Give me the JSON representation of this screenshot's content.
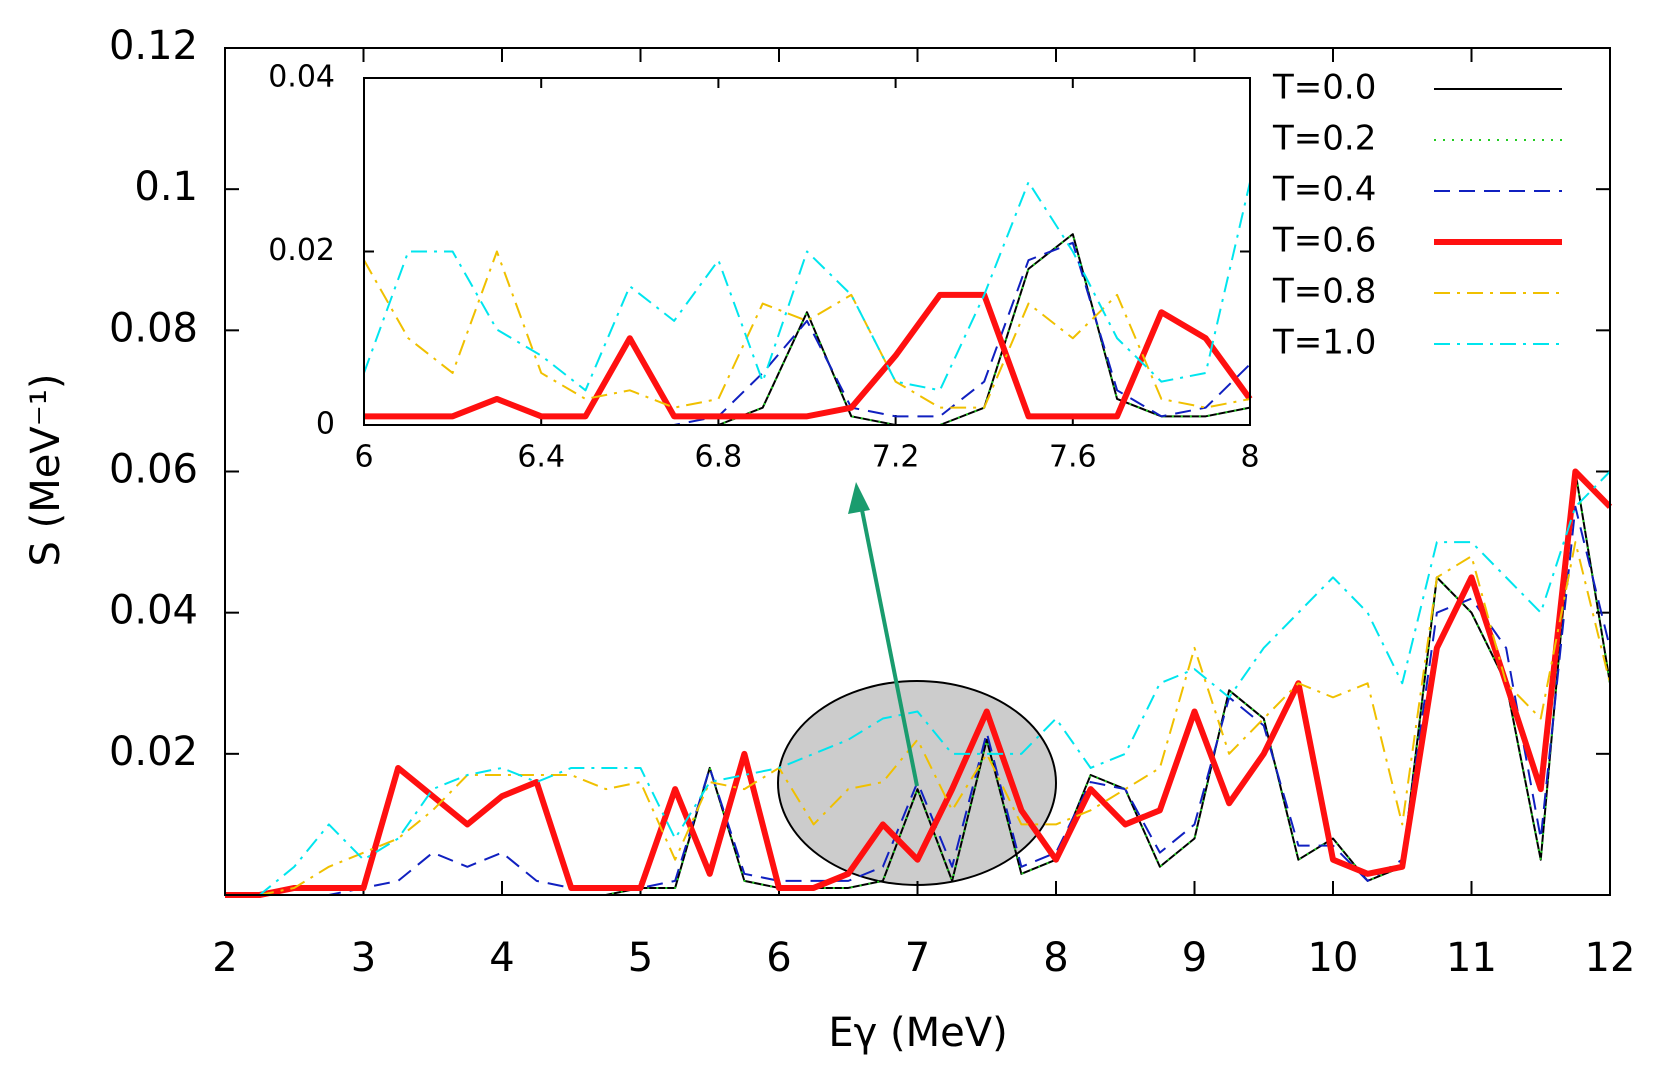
{
  "chart_data": [
    {
      "type": "line",
      "xlabel": "Eγ (MeV)",
      "ylabel": "S (MeV⁻¹)",
      "xlim": [
        2,
        12
      ],
      "ylim": [
        0,
        0.12
      ],
      "xticks": [
        2,
        3,
        4,
        5,
        6,
        7,
        8,
        9,
        10,
        11,
        12
      ],
      "yticks": [
        0.02,
        0.04,
        0.06,
        0.08,
        0.1,
        0.12
      ],
      "legend": "upper right",
      "x": [
        2,
        2.25,
        2.5,
        2.75,
        3,
        3.25,
        3.5,
        3.75,
        4,
        4.25,
        4.5,
        4.75,
        5,
        5.25,
        5.5,
        5.75,
        6,
        6.25,
        6.5,
        6.75,
        7,
        7.25,
        7.5,
        7.75,
        8,
        8.25,
        8.5,
        8.75,
        9,
        9.25,
        9.5,
        9.75,
        10,
        10.25,
        10.5,
        10.75,
        11,
        11.25,
        11.5,
        11.75,
        12
      ],
      "series": [
        {
          "name": "T=0.0",
          "color": "#000000",
          "linestyle": "solid",
          "linewidth": 2,
          "values": [
            0,
            0,
            0,
            0,
            0,
            0,
            0,
            0,
            0,
            0,
            0,
            0,
            0.001,
            0.001,
            0.018,
            0.002,
            0.001,
            0.001,
            0.001,
            0.002,
            0.015,
            0.002,
            0.022,
            0.003,
            0.005,
            0.017,
            0.015,
            0.004,
            0.008,
            0.029,
            0.025,
            0.005,
            0.008,
            0.002,
            0.004,
            0.045,
            0.04,
            0.03,
            0.005,
            0.06,
            0.03
          ]
        },
        {
          "name": "T=0.2",
          "color": "#22cc22",
          "linestyle": "dotted",
          "linewidth": 2,
          "values": [
            0,
            0,
            0,
            0,
            0,
            0,
            0,
            0,
            0,
            0,
            0,
            0,
            0.001,
            0.001,
            0.018,
            0.002,
            0.001,
            0.001,
            0.001,
            0.002,
            0.015,
            0.002,
            0.022,
            0.003,
            0.005,
            0.017,
            0.015,
            0.004,
            0.008,
            0.029,
            0.025,
            0.005,
            0.008,
            0.002,
            0.004,
            0.045,
            0.04,
            0.03,
            0.005,
            0.06,
            0.03
          ]
        },
        {
          "name": "T=0.4",
          "color": "#1020c0",
          "linestyle": "dashed",
          "linewidth": 2,
          "values": [
            0,
            0,
            0,
            0,
            0.001,
            0.002,
            0.006,
            0.004,
            0.006,
            0.002,
            0.001,
            0.001,
            0.001,
            0.002,
            0.018,
            0.003,
            0.002,
            0.002,
            0.002,
            0.004,
            0.016,
            0.004,
            0.023,
            0.004,
            0.006,
            0.016,
            0.015,
            0.006,
            0.01,
            0.028,
            0.024,
            0.007,
            0.007,
            0.002,
            0.005,
            0.04,
            0.042,
            0.035,
            0.008,
            0.055,
            0.035
          ]
        },
        {
          "name": "T=0.6",
          "color": "#ff1010",
          "linestyle": "solid",
          "linewidth": 6,
          "values": [
            0,
            0,
            0.001,
            0.001,
            0.001,
            0.018,
            0.014,
            0.01,
            0.014,
            0.016,
            0.001,
            0.001,
            0.001,
            0.015,
            0.003,
            0.02,
            0.001,
            0.001,
            0.003,
            0.01,
            0.005,
            0.015,
            0.026,
            0.012,
            0.005,
            0.015,
            0.01,
            0.012,
            0.026,
            0.013,
            0.02,
            0.03,
            0.005,
            0.003,
            0.004,
            0.035,
            0.045,
            0.03,
            0.015,
            0.06,
            0.055
          ]
        },
        {
          "name": "T=0.8",
          "color": "#f0c000",
          "linestyle": "dashdot",
          "linewidth": 2,
          "values": [
            0,
            0,
            0.001,
            0.004,
            0.006,
            0.008,
            0.012,
            0.017,
            0.017,
            0.017,
            0.017,
            0.015,
            0.016,
            0.005,
            0.016,
            0.015,
            0.018,
            0.01,
            0.015,
            0.016,
            0.022,
            0.012,
            0.02,
            0.01,
            0.01,
            0.012,
            0.015,
            0.018,
            0.035,
            0.02,
            0.025,
            0.03,
            0.028,
            0.03,
            0.01,
            0.045,
            0.048,
            0.03,
            0.025,
            0.05,
            0.03
          ]
        },
        {
          "name": "T=1.0",
          "color": "#00e5ee",
          "linestyle": "dashdot",
          "linewidth": 2,
          "values": [
            0,
            0,
            0.004,
            0.01,
            0.005,
            0.008,
            0.015,
            0.017,
            0.018,
            0.016,
            0.018,
            0.018,
            0.018,
            0.008,
            0.016,
            0.017,
            0.018,
            0.02,
            0.022,
            0.025,
            0.026,
            0.02,
            0.02,
            0.02,
            0.025,
            0.018,
            0.02,
            0.03,
            0.032,
            0.028,
            0.035,
            0.04,
            0.045,
            0.04,
            0.03,
            0.05,
            0.05,
            0.045,
            0.04,
            0.055,
            0.06
          ]
        }
      ]
    },
    {
      "type": "line",
      "xlim": [
        6,
        8
      ],
      "ylim": [
        0,
        0.04
      ],
      "xticks": [
        6,
        6.4,
        6.8,
        7.2,
        7.6,
        8
      ],
      "yticks": [
        0,
        0.02,
        0.04
      ],
      "x": [
        6,
        6.1,
        6.2,
        6.3,
        6.4,
        6.5,
        6.6,
        6.7,
        6.8,
        6.9,
        7,
        7.1,
        7.2,
        7.3,
        7.4,
        7.5,
        7.6,
        7.7,
        7.8,
        7.9,
        8
      ],
      "series": [
        {
          "color": "#000000",
          "linestyle": "solid",
          "linewidth": 2,
          "values": [
            0,
            0,
            0,
            0,
            0,
            0,
            0,
            0,
            0,
            0.002,
            0.013,
            0.001,
            0,
            0,
            0.002,
            0.018,
            0.022,
            0.003,
            0.001,
            0.001,
            0.002
          ]
        },
        {
          "color": "#22cc22",
          "linestyle": "dotted",
          "linewidth": 2,
          "values": [
            0,
            0,
            0,
            0,
            0,
            0,
            0,
            0,
            0,
            0.002,
            0.013,
            0.001,
            0,
            0,
            0.002,
            0.018,
            0.022,
            0.003,
            0.001,
            0.001,
            0.002
          ]
        },
        {
          "color": "#1020c0",
          "linestyle": "dashed",
          "linewidth": 2,
          "values": [
            0,
            0,
            0,
            0,
            0,
            0,
            0,
            0,
            0.001,
            0.006,
            0.012,
            0.002,
            0.001,
            0.001,
            0.005,
            0.019,
            0.021,
            0.004,
            0.001,
            0.002,
            0.007
          ]
        },
        {
          "color": "#ff1010",
          "linestyle": "solid",
          "linewidth": 6,
          "values": [
            0.001,
            0.001,
            0.001,
            0.003,
            0.001,
            0.001,
            0.01,
            0.001,
            0.001,
            0.001,
            0.001,
            0.002,
            0.008,
            0.015,
            0.015,
            0.001,
            0.001,
            0.001,
            0.013,
            0.01,
            0.003
          ]
        },
        {
          "color": "#f0c000",
          "linestyle": "dashdot",
          "linewidth": 2,
          "values": [
            0.019,
            0.01,
            0.006,
            0.02,
            0.006,
            0.003,
            0.004,
            0.002,
            0.003,
            0.014,
            0.012,
            0.015,
            0.005,
            0.002,
            0.002,
            0.014,
            0.01,
            0.015,
            0.003,
            0.002,
            0.003
          ]
        },
        {
          "color": "#00e5ee",
          "linestyle": "dashdot",
          "linewidth": 2,
          "values": [
            0.006,
            0.02,
            0.02,
            0.011,
            0.008,
            0.004,
            0.016,
            0.012,
            0.019,
            0.005,
            0.02,
            0.015,
            0.005,
            0.004,
            0.015,
            0.028,
            0.02,
            0.01,
            0.005,
            0.006,
            0.028
          ]
        }
      ]
    }
  ]
}
